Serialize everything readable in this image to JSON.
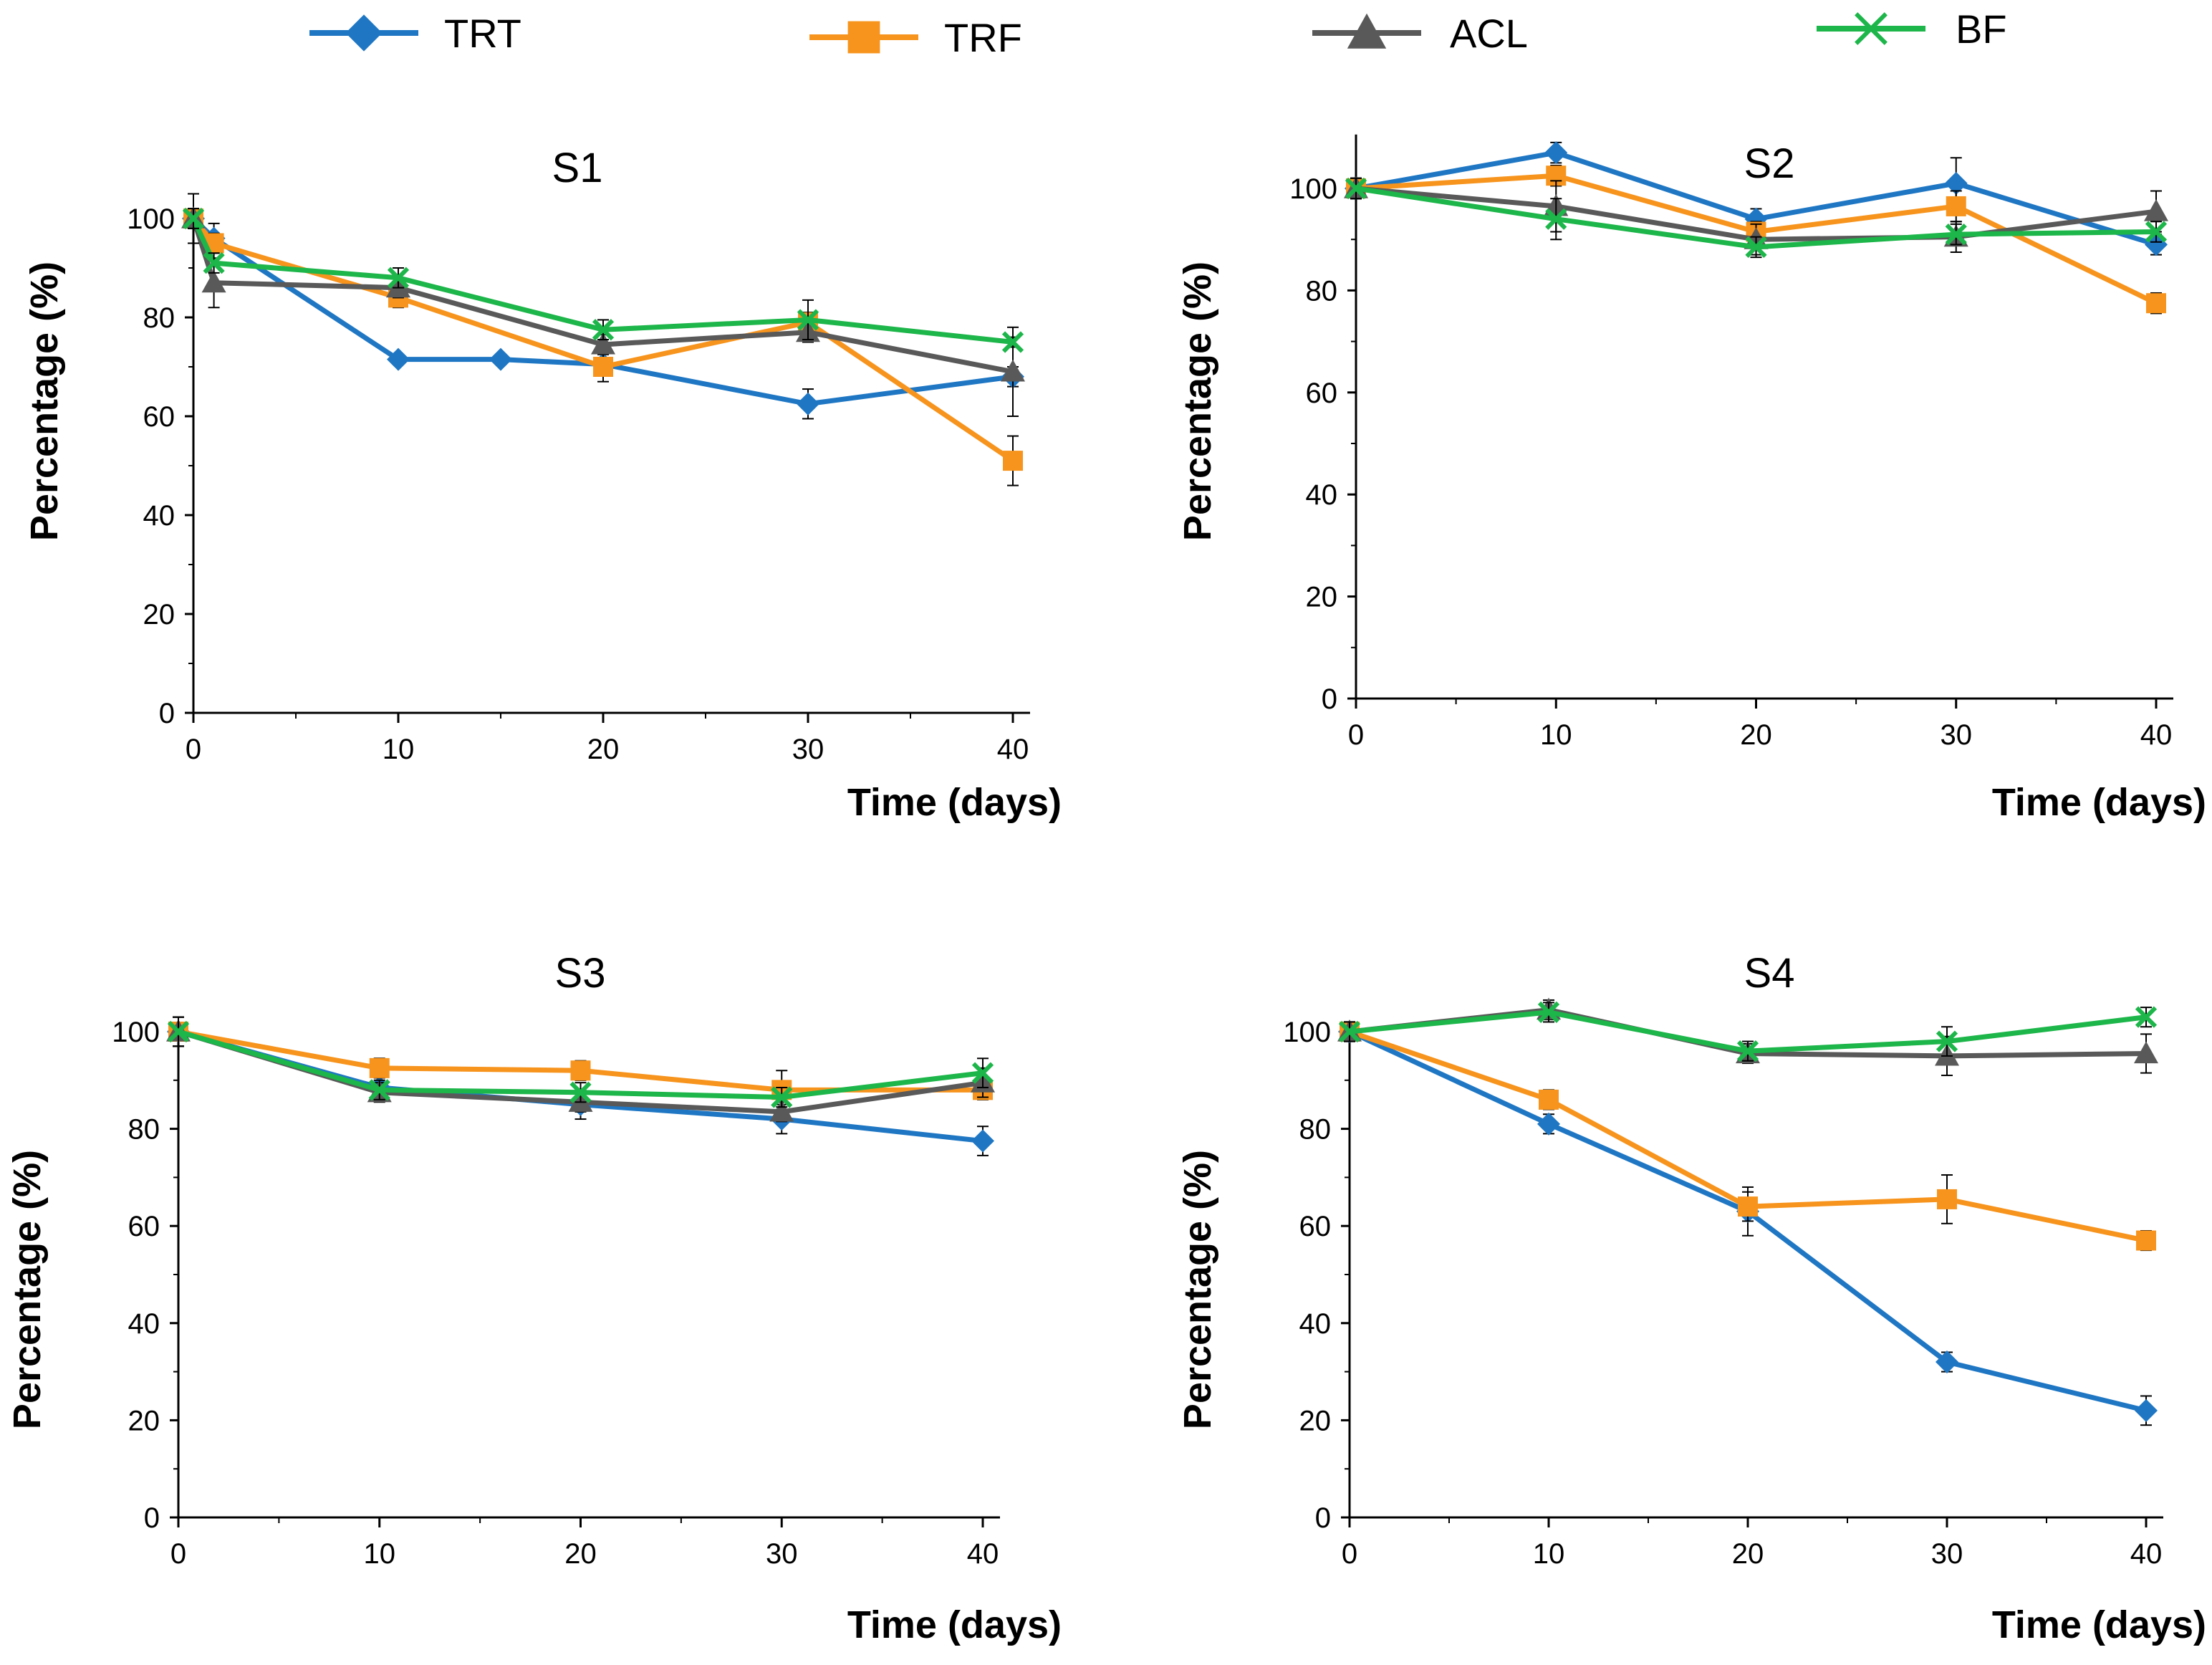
{
  "legend": [
    {
      "name": "TRT",
      "color": "#1F77C4",
      "marker": "diamond"
    },
    {
      "name": "TRF",
      "color": "#F7941D",
      "marker": "square"
    },
    {
      "name": "ACL",
      "color": "#595959",
      "marker": "triangle"
    },
    {
      "name": "BF",
      "color": "#1DB64A",
      "marker": "cross"
    }
  ],
  "chart_data": [
    {
      "type": "line",
      "title": "S1",
      "xlabel": "Time (days)",
      "ylabel": "Percentage (%)",
      "xlim": [
        0,
        40
      ],
      "ylim": [
        0,
        100
      ],
      "xticks": [
        "0",
        "10",
        "20",
        "30",
        "40"
      ],
      "yticks": [
        "0",
        "20",
        "40",
        "60",
        "80",
        "100"
      ],
      "series": [
        {
          "name": "TRT",
          "x": [
            0,
            1,
            10,
            15,
            20,
            30,
            40
          ],
          "values": [
            100,
            96,
            71.5,
            71.5,
            70.5,
            62.5,
            68
          ],
          "errors": [
            2,
            3,
            1,
            1,
            2,
            3,
            2
          ]
        },
        {
          "name": "TRF",
          "x": [
            0,
            1,
            10,
            20,
            30,
            40
          ],
          "values": [
            100,
            95,
            84,
            70,
            79,
            51
          ],
          "errors": [
            2,
            2,
            2,
            3,
            2,
            5
          ]
        },
        {
          "name": "ACL",
          "x": [
            0,
            1,
            10,
            20,
            30,
            40
          ],
          "values": [
            100,
            87,
            86,
            74.5,
            77,
            69
          ],
          "errors": [
            5,
            5,
            2,
            2,
            2,
            9
          ]
        },
        {
          "name": "BF",
          "x": [
            0,
            1,
            10,
            20,
            30,
            40
          ],
          "values": [
            100,
            91,
            88,
            77.5,
            79.5,
            75
          ],
          "errors": [
            2,
            2,
            2,
            2,
            4,
            1
          ]
        }
      ]
    },
    {
      "type": "line",
      "title": "S2",
      "xlabel": "Time (days)",
      "ylabel": "Percentage (%)",
      "xlim": [
        0,
        40
      ],
      "ylim": [
        0,
        110
      ],
      "xticks": [
        "0",
        "10",
        "20",
        "30",
        "40"
      ],
      "yticks": [
        "0",
        "20",
        "40",
        "60",
        "80",
        "100"
      ],
      "series": [
        {
          "name": "TRT",
          "x": [
            0,
            10,
            20,
            30,
            40
          ],
          "values": [
            100,
            107,
            94,
            101,
            89
          ],
          "errors": [
            2,
            2,
            2,
            5,
            2
          ]
        },
        {
          "name": "TRF",
          "x": [
            0,
            10,
            20,
            30,
            40
          ],
          "values": [
            100,
            102.5,
            91.5,
            96.5,
            77.5
          ],
          "errors": [
            2,
            2,
            2,
            3,
            2
          ]
        },
        {
          "name": "ACL",
          "x": [
            0,
            10,
            20,
            30,
            40
          ],
          "values": [
            100,
            96.5,
            90,
            90.5,
            95.5
          ],
          "errors": [
            2,
            5,
            3,
            3,
            4
          ]
        },
        {
          "name": "BF",
          "x": [
            0,
            10,
            20,
            30,
            40
          ],
          "values": [
            100,
            94,
            88.5,
            91,
            91.5
          ],
          "errors": [
            2,
            4,
            2,
            2,
            2
          ]
        }
      ]
    },
    {
      "type": "line",
      "title": "S3",
      "xlabel": "Time (days)",
      "ylabel": "Percentage (%)",
      "xlim": [
        0,
        40
      ],
      "ylim": [
        0,
        100
      ],
      "xticks": [
        "0",
        "10",
        "20",
        "30",
        "40"
      ],
      "yticks": [
        "0",
        "20",
        "40",
        "60",
        "80",
        "100"
      ],
      "series": [
        {
          "name": "TRT",
          "x": [
            0,
            10,
            20,
            30,
            40
          ],
          "values": [
            100,
            88.5,
            85,
            82,
            77.5
          ],
          "errors": [
            3,
            2,
            3,
            3,
            3
          ]
        },
        {
          "name": "TRF",
          "x": [
            0,
            10,
            20,
            30,
            40
          ],
          "values": [
            100,
            92.5,
            92,
            88,
            88
          ],
          "errors": [
            3,
            2,
            2,
            4,
            2
          ]
        },
        {
          "name": "ACL",
          "x": [
            0,
            10,
            20,
            30,
            40
          ],
          "values": [
            100,
            87.5,
            85.5,
            83.5,
            89.5
          ],
          "errors": [
            3,
            2,
            2,
            2,
            3
          ]
        },
        {
          "name": "BF",
          "x": [
            0,
            10,
            20,
            30,
            40
          ],
          "values": [
            100,
            88,
            87.5,
            86.5,
            91.5
          ],
          "errors": [
            3,
            2,
            2,
            2,
            3
          ]
        }
      ]
    },
    {
      "type": "line",
      "title": "S4",
      "xlabel": "Time (days)",
      "ylabel": "Percentage (%)",
      "xlim": [
        0,
        40
      ],
      "ylim": [
        0,
        100
      ],
      "xticks": [
        "0",
        "10",
        "20",
        "30",
        "40"
      ],
      "yticks": [
        "0",
        "20",
        "40",
        "60",
        "80",
        "100"
      ],
      "series": [
        {
          "name": "TRT",
          "x": [
            0,
            10,
            20,
            30,
            40
          ],
          "values": [
            100,
            81,
            63,
            32,
            22
          ],
          "errors": [
            2,
            2,
            5,
            2,
            3
          ]
        },
        {
          "name": "TRF",
          "x": [
            0,
            10,
            20,
            30,
            40
          ],
          "values": [
            100,
            86,
            64,
            65.5,
            57
          ],
          "errors": [
            2,
            2,
            3,
            5,
            2
          ]
        },
        {
          "name": "ACL",
          "x": [
            0,
            10,
            20,
            30,
            40
          ],
          "values": [
            100,
            104.5,
            95.5,
            95,
            95.5
          ],
          "errors": [
            2,
            2,
            2,
            4,
            4
          ]
        },
        {
          "name": "BF",
          "x": [
            0,
            10,
            20,
            30,
            40
          ],
          "values": [
            100,
            104,
            96,
            98,
            103
          ],
          "errors": [
            2,
            2,
            2,
            3,
            2
          ]
        }
      ]
    }
  ]
}
